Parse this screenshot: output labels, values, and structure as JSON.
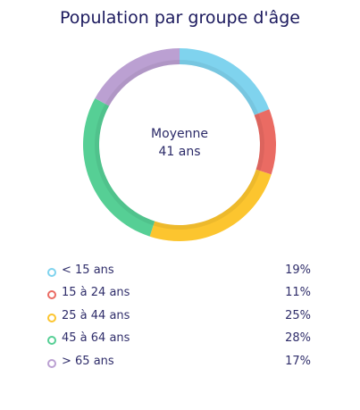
{
  "chart_data": {
    "type": "pie",
    "title": "Population par groupe d'âge",
    "center_label": {
      "line1": "Moyenne",
      "line2": "41 ans"
    },
    "categories": [
      "< 15 ans",
      "15 à 24 ans",
      "25 à 44 ans",
      "45 à 64 ans",
      "> 65 ans"
    ],
    "values": [
      19,
      11,
      25,
      28,
      17
    ],
    "value_labels": [
      "19%",
      "11%",
      "25%",
      "28%",
      "17%"
    ],
    "colors": [
      "#7fd3ee",
      "#ea6b63",
      "#fcc52f",
      "#56cf95",
      "#bba0d2"
    ],
    "legend_position": "bottom"
  }
}
